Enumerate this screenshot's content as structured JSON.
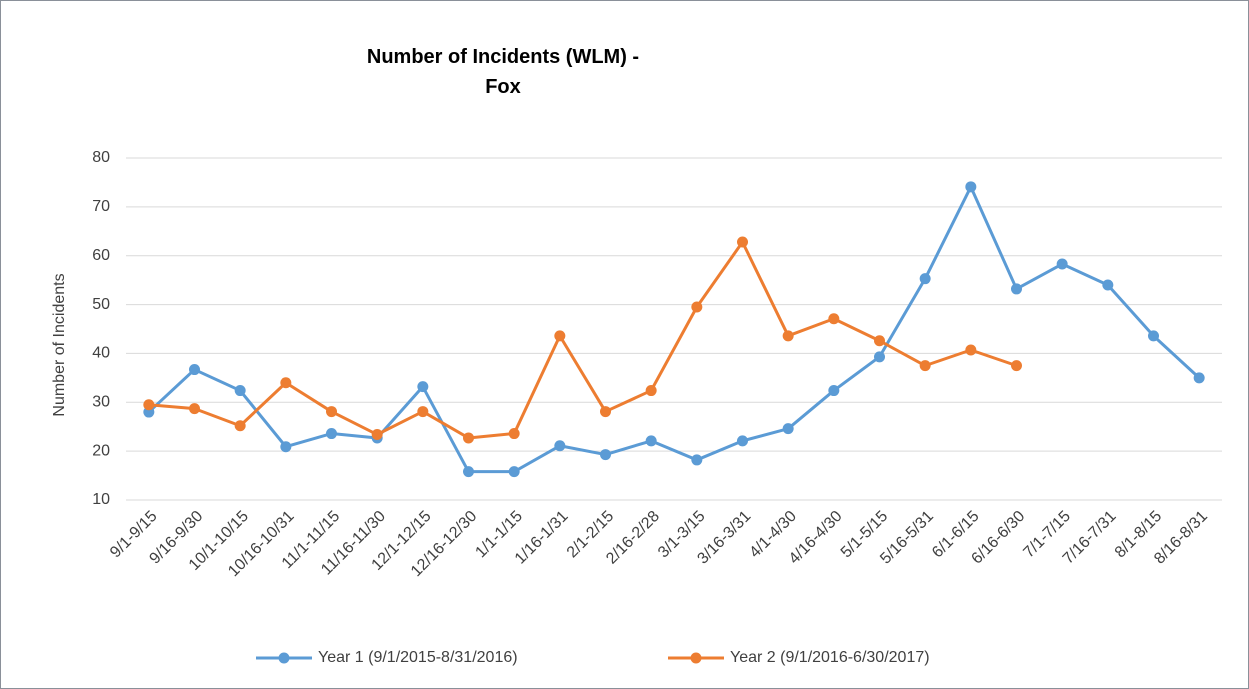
{
  "chart_data": {
    "type": "line",
    "title": "Number of Incidents (WLM) - Fox",
    "y_label": "Number of Incidents",
    "categories": [
      "9/1-9/15",
      "9/16-9/30",
      "10/1-10/15",
      "10/16-10/31",
      "11/1-11/15",
      "11/16-11/30",
      "12/1-12/15",
      "12/16-12/30",
      "1/1-1/15",
      "1/16-1/31",
      "2/1-2/15",
      "2/16-2/28",
      "3/1-3/15",
      "3/16-3/31",
      "4/1-4/30",
      "4/16-4/30",
      "5/1-5/15",
      "5/16-5/31",
      "6/1-6/15",
      "6/16-6/30",
      "7/1-7/15",
      "7/16-7/31",
      "8/1-8/15",
      "8/16-8/31"
    ],
    "series": [
      {
        "name": "Year 1 (9/1/2015-8/31/2016)",
        "color": "#5b9bd5",
        "values": [
          28.0,
          36.7,
          32.4,
          20.9,
          23.6,
          22.7,
          33.2,
          15.8,
          15.8,
          21.1,
          19.3,
          22.1,
          18.2,
          22.1,
          24.6,
          32.4,
          39.3,
          55.3,
          74.1,
          53.2,
          58.3,
          54.0,
          43.6,
          35.0
        ]
      },
      {
        "name": "Year 2 (9/1/2016-6/30/2017)",
        "color": "#ed7d31",
        "values": [
          29.5,
          28.7,
          25.2,
          34.0,
          28.1,
          23.4,
          28.1,
          22.7,
          23.6,
          43.6,
          28.1,
          32.4,
          49.5,
          62.8,
          43.6,
          47.1,
          42.6,
          37.5,
          40.7,
          37.5,
          null,
          null,
          null,
          null
        ]
      }
    ],
    "ylim": [
      10,
      80
    ],
    "yticks": [
      10,
      20,
      30,
      40,
      50,
      60,
      70,
      80
    ],
    "grid": true,
    "legend": "bottom"
  }
}
